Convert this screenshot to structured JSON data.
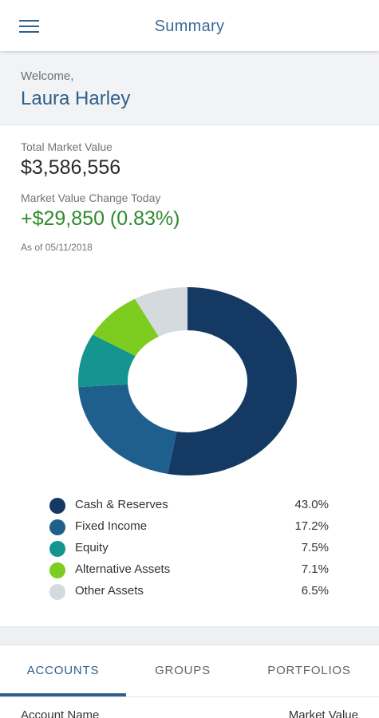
{
  "header": {
    "title": "Summary",
    "menu_icon": "hamburger-menu-icon"
  },
  "welcome": {
    "label": "Welcome,",
    "name": "Laura Harley"
  },
  "values": {
    "total_label": "Total Market Value",
    "total": "$3,586,556",
    "change_label": "Market Value Change Today",
    "change": "+$29,850 (0.83%)",
    "as_of": "As of 05/11/2018"
  },
  "colors": {
    "cash": "#143a63",
    "fixed": "#1e5f8e",
    "equity": "#149590",
    "alternative": "#7dcc20",
    "other": "#d4dadd"
  },
  "chart_data": {
    "type": "pie",
    "labels": [
      "Cash & Reserves",
      "Fixed Income",
      "Equity",
      "Alternative Assets",
      "Other Assets"
    ],
    "values": [
      43.0,
      17.2,
      7.5,
      7.1,
      6.5
    ],
    "colors": [
      "#143a63",
      "#1e5f8e",
      "#149590",
      "#7dcc20",
      "#d4dadd"
    ]
  },
  "legend": [
    {
      "label": "Cash & Reserves",
      "value": "43.0%",
      "color": "#143a63"
    },
    {
      "label": "Fixed Income",
      "value": "17.2%",
      "color": "#1e5f8e"
    },
    {
      "label": " Equity",
      "value": "7.5%",
      "color": "#149590"
    },
    {
      "label": "Alternative Assets",
      "value": "7.1%",
      "color": "#7dcc20"
    },
    {
      "label": "Other Assets",
      "value": "6.5%",
      "color": "#d4dadd"
    }
  ],
  "tabs": [
    "ACCOUNTS",
    "GROUPS",
    "PORTFOLIOS"
  ],
  "table": {
    "col1": "Account Name",
    "col2": "Market Value"
  }
}
